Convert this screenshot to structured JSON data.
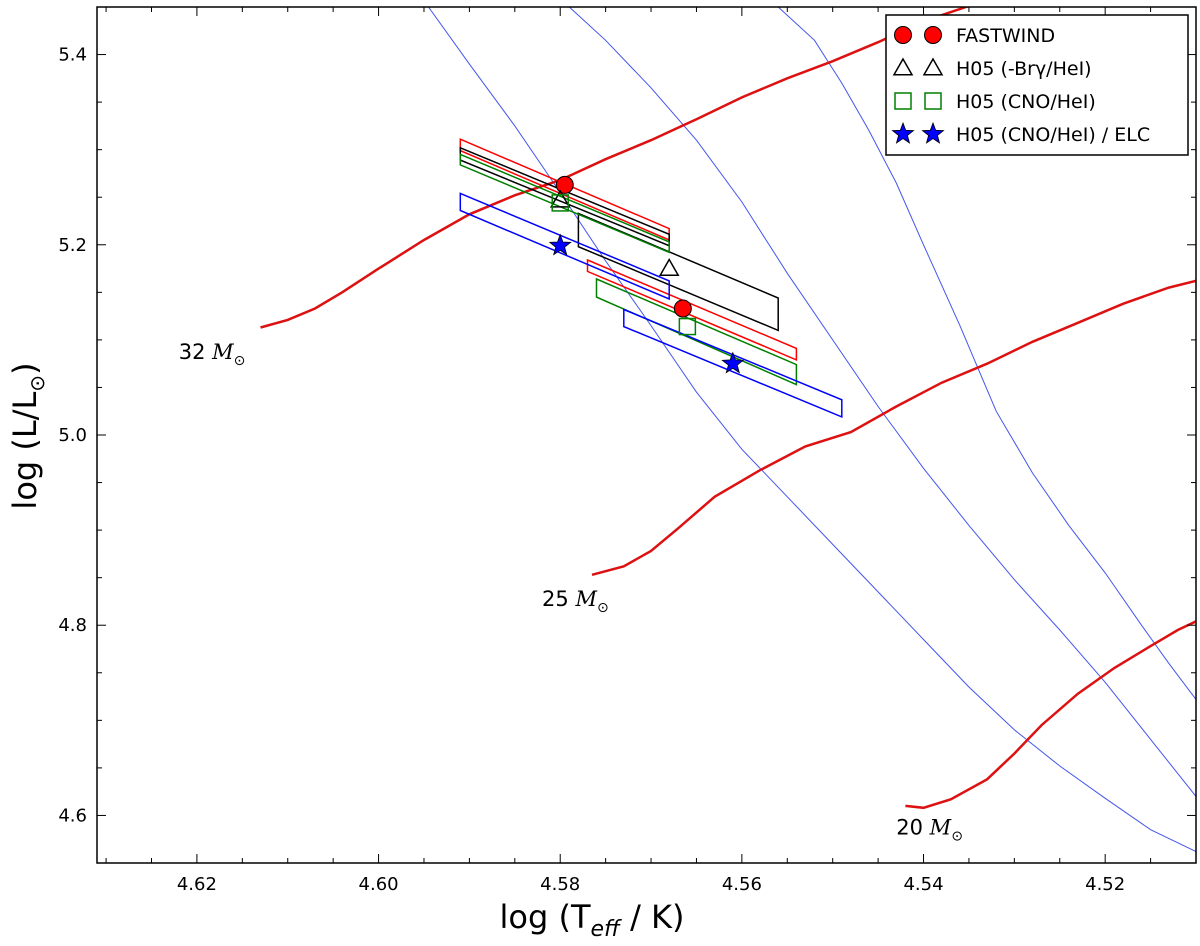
{
  "chart_data": {
    "type": "scatter",
    "title": "",
    "xlabel": "log (T",
    "xlabel_sub": "eff",
    "xlabel_end": " / K)",
    "ylabel": "log (L/L",
    "ylabel_sun": "⊙",
    "ylabel_end": ")",
    "x_inverted": true,
    "xlim": [
      4.631,
      4.51
    ],
    "ylim": [
      4.55,
      5.45
    ],
    "xticks": [
      4.62,
      4.6,
      4.58,
      4.56,
      4.54,
      4.52
    ],
    "xtick_labels": [
      "4.62",
      "4.60",
      "4.58",
      "4.56",
      "4.54",
      "4.52"
    ],
    "yticks": [
      4.6,
      4.8,
      5.0,
      5.2,
      5.4
    ],
    "ytick_labels": [
      "4.6",
      "4.8",
      "5.0",
      "5.2",
      "5.4"
    ],
    "grid": false,
    "legend_position": "top-right",
    "colors": {
      "fastwind": "#ff0000",
      "brg": "#000000",
      "cno": "#008000",
      "elc": "#0000ff",
      "track": "#dd1111",
      "isochrone": "#4455ee"
    },
    "series": [
      {
        "name": "FASTWIND",
        "marker": "circle",
        "color": "#ff0000",
        "points": [
          [
            4.5795,
            5.263
          ],
          [
            4.5665,
            5.133
          ]
        ],
        "boxes": [
          [
            [
              4.591,
              5.311
            ],
            [
              4.568,
              5.217
            ],
            [
              4.568,
              5.205
            ],
            [
              4.591,
              5.299
            ]
          ],
          [
            [
              4.577,
              5.184
            ],
            [
              4.554,
              5.091
            ],
            [
              4.554,
              5.079
            ],
            [
              4.577,
              5.172
            ]
          ]
        ]
      },
      {
        "name": "H05 (-Brγ/HeI)",
        "marker": "triangle",
        "color": "#000000",
        "points": [
          [
            4.58,
            5.247
          ],
          [
            4.568,
            5.175
          ]
        ],
        "boxes": [
          [
            [
              4.591,
              5.302
            ],
            [
              4.568,
              5.211
            ],
            [
              4.568,
              5.199
            ],
            [
              4.591,
              5.289
            ]
          ],
          [
            [
              4.578,
              5.233
            ],
            [
              4.556,
              5.144
            ],
            [
              4.556,
              5.11
            ],
            [
              4.578,
              5.198
            ]
          ]
        ]
      },
      {
        "name": "H05 (CNO/HeI)",
        "marker": "square",
        "color": "#008000",
        "points": [
          [
            4.58,
            5.244
          ],
          [
            4.566,
            5.114
          ]
        ],
        "boxes": [
          [
            [
              4.591,
              5.295
            ],
            [
              4.568,
              5.203
            ],
            [
              4.568,
              5.192
            ],
            [
              4.591,
              5.284
            ]
          ],
          [
            [
              4.576,
              5.164
            ],
            [
              4.554,
              5.074
            ],
            [
              4.554,
              5.053
            ],
            [
              4.576,
              5.145
            ]
          ]
        ]
      },
      {
        "name": "H05 (CNO/HeI) / ELC",
        "marker": "star",
        "color": "#0000ff",
        "points": [
          [
            4.58,
            5.199
          ],
          [
            4.561,
            5.075
          ]
        ],
        "boxes": [
          [
            [
              4.591,
              5.254
            ],
            [
              4.568,
              5.162
            ],
            [
              4.568,
              5.143
            ],
            [
              4.591,
              5.236
            ]
          ],
          [
            [
              4.573,
              5.132
            ],
            [
              4.549,
              5.037
            ],
            [
              4.549,
              5.019
            ],
            [
              4.573,
              5.114
            ]
          ]
        ]
      }
    ],
    "tracks": [
      {
        "label": "32",
        "points": [
          [
            4.613,
            5.113
          ],
          [
            4.61,
            5.121
          ],
          [
            4.607,
            5.133
          ],
          [
            4.604,
            5.15
          ],
          [
            4.6,
            5.175
          ],
          [
            4.595,
            5.205
          ],
          [
            4.59,
            5.232
          ],
          [
            4.585,
            5.252
          ],
          [
            4.58,
            5.268
          ],
          [
            4.575,
            5.29
          ],
          [
            4.57,
            5.31
          ],
          [
            4.565,
            5.332
          ],
          [
            4.56,
            5.355
          ],
          [
            4.555,
            5.375
          ],
          [
            4.55,
            5.393
          ],
          [
            4.545,
            5.413
          ],
          [
            4.54,
            5.435
          ],
          [
            4.535,
            5.451
          ]
        ]
      },
      {
        "label": "25",
        "points": [
          [
            4.5765,
            4.853
          ],
          [
            4.573,
            4.862
          ],
          [
            4.57,
            4.878
          ],
          [
            4.567,
            4.902
          ],
          [
            4.563,
            4.935
          ],
          [
            4.558,
            4.963
          ],
          [
            4.553,
            4.988
          ],
          [
            4.548,
            5.003
          ],
          [
            4.543,
            5.03
          ],
          [
            4.538,
            5.055
          ],
          [
            4.533,
            5.075
          ],
          [
            4.528,
            5.098
          ],
          [
            4.523,
            5.118
          ],
          [
            4.518,
            5.138
          ],
          [
            4.513,
            5.155
          ],
          [
            4.51,
            5.162
          ]
        ]
      },
      {
        "label": "20",
        "points": [
          [
            4.542,
            4.61
          ],
          [
            4.54,
            4.608
          ],
          [
            4.537,
            4.617
          ],
          [
            4.533,
            4.638
          ],
          [
            4.53,
            4.665
          ],
          [
            4.527,
            4.695
          ],
          [
            4.523,
            4.728
          ],
          [
            4.519,
            4.755
          ],
          [
            4.515,
            4.778
          ],
          [
            4.512,
            4.795
          ],
          [
            4.51,
            4.804
          ]
        ]
      }
    ],
    "track_labels": [
      {
        "text": "32",
        "x": 4.622,
        "y": 5.08
      },
      {
        "text": "25",
        "x": 4.582,
        "y": 4.82
      },
      {
        "text": "20",
        "x": 4.543,
        "y": 4.58
      }
    ],
    "track_label_unit": "M",
    "track_label_sun": "⊙",
    "isochrones": [
      [
        [
          4.5945,
          5.45
        ],
        [
          4.59,
          5.39
        ],
        [
          4.585,
          5.325
        ],
        [
          4.58,
          5.255
        ],
        [
          4.575,
          5.183
        ],
        [
          4.57,
          5.115
        ],
        [
          4.565,
          5.045
        ],
        [
          4.56,
          4.985
        ],
        [
          4.555,
          4.935
        ],
        [
          4.55,
          4.885
        ],
        [
          4.545,
          4.835
        ],
        [
          4.54,
          4.785
        ],
        [
          4.535,
          4.735
        ],
        [
          4.53,
          4.69
        ],
        [
          4.525,
          4.652
        ],
        [
          4.52,
          4.618
        ],
        [
          4.515,
          4.585
        ],
        [
          4.51,
          4.562
        ]
      ],
      [
        [
          4.579,
          5.45
        ],
        [
          4.575,
          5.415
        ],
        [
          4.57,
          5.365
        ],
        [
          4.565,
          5.31
        ],
        [
          4.56,
          5.245
        ],
        [
          4.555,
          5.17
        ],
        [
          4.55,
          5.1
        ],
        [
          4.545,
          5.03
        ],
        [
          4.54,
          4.965
        ],
        [
          4.535,
          4.905
        ],
        [
          4.53,
          4.848
        ],
        [
          4.525,
          4.795
        ],
        [
          4.52,
          4.74
        ],
        [
          4.515,
          4.68
        ],
        [
          4.51,
          4.62
        ]
      ],
      [
        [
          4.556,
          5.45
        ],
        [
          4.552,
          5.415
        ],
        [
          4.549,
          5.37
        ],
        [
          4.546,
          5.32
        ],
        [
          4.543,
          5.265
        ],
        [
          4.54,
          5.2
        ],
        [
          4.536,
          5.115
        ],
        [
          4.532,
          5.025
        ],
        [
          4.528,
          4.96
        ],
        [
          4.524,
          4.905
        ],
        [
          4.52,
          4.855
        ],
        [
          4.516,
          4.8
        ],
        [
          4.513,
          4.76
        ],
        [
          4.51,
          4.722
        ]
      ]
    ]
  }
}
